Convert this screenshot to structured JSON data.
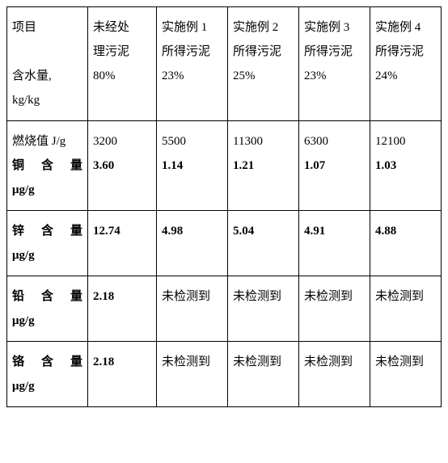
{
  "table": {
    "header": {
      "c0_line1": "项目",
      "c1_line1": "未经处",
      "c1_line2": "理污泥",
      "c2_line1": "实施例 1",
      "c2_line2": "所得污泥",
      "c3_line1": "实施例 2",
      "c3_line2": "所得污泥",
      "c4_line1": "实施例 3",
      "c4_line2": "所得污泥",
      "c5_line1": "实施例 4",
      "c5_line2": "所得污泥",
      "c0_line3": "含水量,",
      "c1_line3": "80%",
      "c2_line3": "23%",
      "c3_line3": "25%",
      "c4_line3": "23%",
      "c5_line3": "24%",
      "c0_line4": "kg/kg"
    },
    "row2": {
      "c0_line1": "燃烧值 J/g",
      "c0_label_a": "铜",
      "c0_label_b": "含",
      "c0_label_c": "量",
      "c0_unit": "μg/g",
      "c1_v1": "3200",
      "c1_v2": "3.60",
      "c2_v1": "5500",
      "c2_v2": "1.14",
      "c3_v1": "11300",
      "c3_v2": "1.21",
      "c4_v1": "6300",
      "c4_v2": "1.07",
      "c5_v1": "12100",
      "c5_v2": "1.03"
    },
    "row3": {
      "c0_label_a": "锌",
      "c0_label_b": "含",
      "c0_label_c": "量",
      "c0_unit": "μg/g",
      "c1": "12.74",
      "c2": "4.98",
      "c3": "5.04",
      "c4": "4.91",
      "c5": "4.88"
    },
    "row4": {
      "c0_label_a": "铅",
      "c0_label_b": "含",
      "c0_label_c": "量",
      "c0_unit": "μg/g",
      "c1": "2.18",
      "c2": "未检测到",
      "c3": "未检测到",
      "c4": "未检测到",
      "c5": "未检测到"
    },
    "row5": {
      "c0_label_a": "铬",
      "c0_label_b": "含",
      "c0_label_c": "量",
      "c0_unit": "μg/g",
      "c1": "2.18",
      "c2": "未检测到",
      "c3": "未检测到",
      "c4": "未检测到",
      "c5": "未检测到"
    }
  }
}
